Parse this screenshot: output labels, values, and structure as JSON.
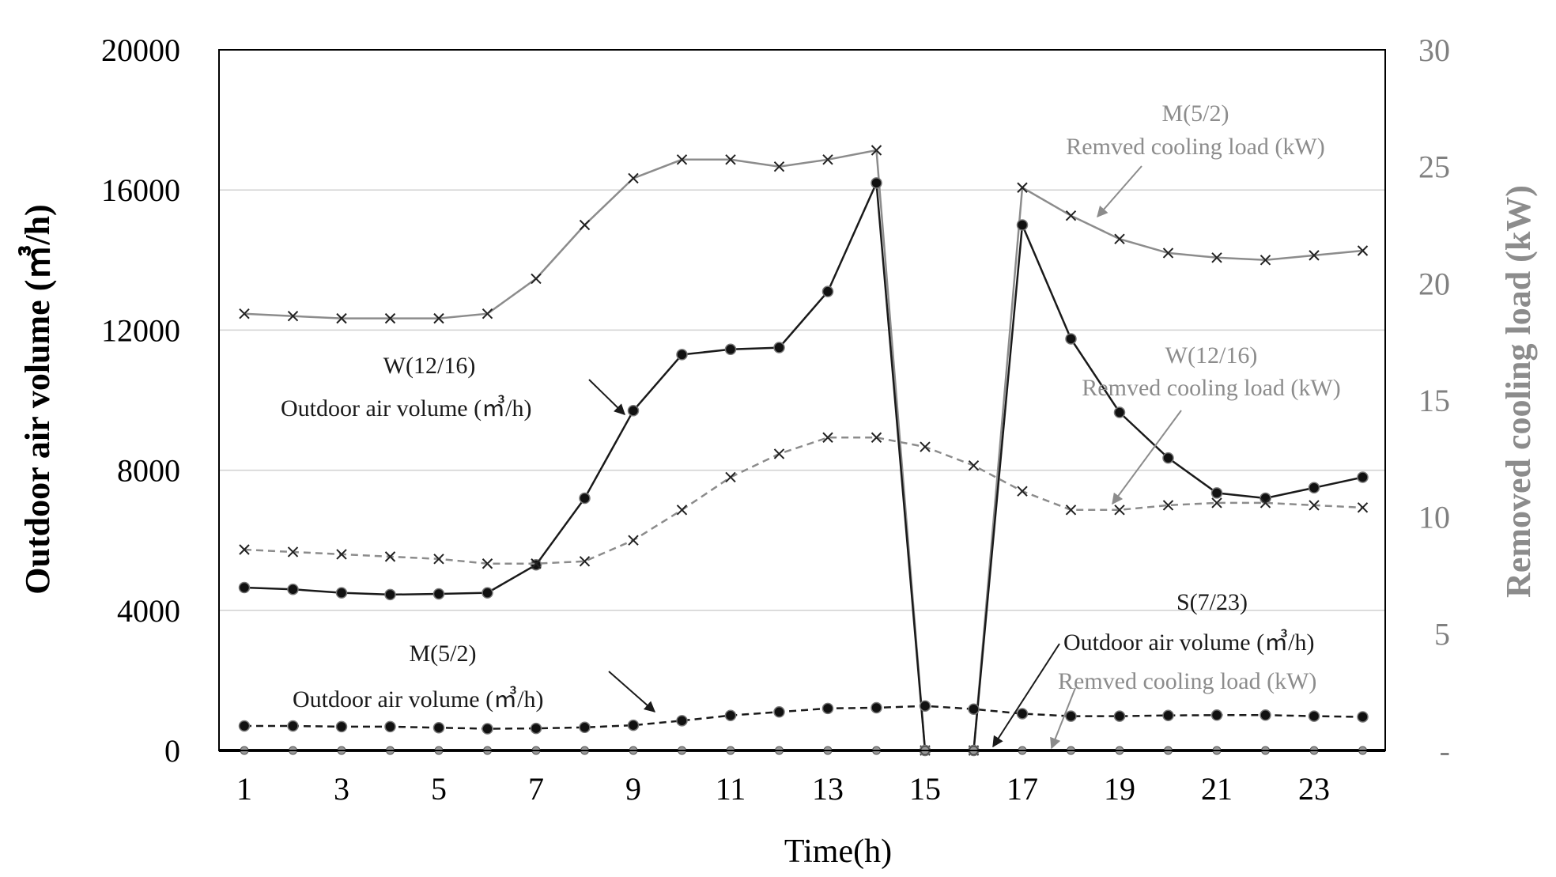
{
  "chart_data": {
    "type": "line",
    "xlabel": "Time(h)",
    "ylabel_left": "Outdoor air volume (㎥/h)",
    "ylabel_right": "Removed cooling load (kW)",
    "x": [
      1,
      2,
      3,
      4,
      5,
      6,
      7,
      8,
      9,
      10,
      11,
      12,
      13,
      14,
      15,
      16,
      17,
      18,
      19,
      20,
      21,
      22,
      23,
      24
    ],
    "x_tick_labels": [
      "1",
      "3",
      "5",
      "7",
      "9",
      "11",
      "13",
      "15",
      "17",
      "19",
      "21",
      "23"
    ],
    "y_left_ticks": [
      "0",
      "4000",
      "8000",
      "12000",
      "16000",
      "20000"
    ],
    "y_right_ticks": [
      "-",
      "5",
      "10",
      "15",
      "20",
      "25",
      "30"
    ],
    "ylim_left": [
      0,
      20000
    ],
    "ylim_right": [
      0,
      30
    ],
    "series": [
      {
        "name": "M(5/2) Removed cooling load (kW)",
        "axis": "right",
        "values": [
          18.7,
          18.6,
          18.5,
          18.5,
          18.5,
          18.7,
          20.2,
          22.5,
          24.5,
          25.3,
          25.3,
          25.0,
          25.3,
          25.7,
          0,
          0,
          24.1,
          22.9,
          21.9,
          21.3,
          21.1,
          21.0,
          21.2,
          21.4
        ]
      },
      {
        "name": "W(12/16) Outdoor air volume (㎥/h)",
        "axis": "left",
        "values": [
          4650,
          4600,
          4500,
          4450,
          4470,
          4500,
          5300,
          7200,
          9700,
          11300,
          11450,
          11500,
          13100,
          16200,
          0,
          0,
          15000,
          11750,
          9650,
          8350,
          7350,
          7200,
          7500,
          7800
        ]
      },
      {
        "name": "W(12/16) Removed cooling load (kW)",
        "axis": "right",
        "values": [
          8.6,
          8.5,
          8.4,
          8.3,
          8.2,
          8.0,
          8.0,
          8.1,
          9.0,
          10.3,
          11.7,
          12.7,
          13.4,
          13.4,
          13.0,
          12.2,
          11.1,
          10.3,
          10.3,
          10.5,
          10.6,
          10.6,
          10.5,
          10.4
        ]
      },
      {
        "name": "M(5/2) Outdoor air volume (㎥/h)",
        "axis": "left",
        "values": [
          700,
          700,
          680,
          680,
          650,
          620,
          630,
          660,
          720,
          850,
          1000,
          1100,
          1200,
          1220,
          1270,
          1180,
          1050,
          980,
          980,
          1000,
          1010,
          1010,
          980,
          960
        ]
      },
      {
        "name": "S(7/23) Outdoor air volume (㎥/h)",
        "axis": "left",
        "values": [
          0,
          0,
          0,
          0,
          0,
          0,
          0,
          0,
          0,
          0,
          0,
          0,
          0,
          0,
          0,
          0,
          0,
          0,
          0,
          0,
          0,
          0,
          0,
          0
        ]
      }
    ],
    "annotations": {
      "m_cooling_title": "M(5/2)",
      "m_cooling_label": "Remved cooling load (kW)",
      "w_air_title": "W(12/16)",
      "w_air_label": "Outdoor air volume (㎥/h)",
      "w_cooling_title": "W(12/16)",
      "w_cooling_label": "Remved cooling load (kW)",
      "s_title": "S(7/23)",
      "s_air_label": "Outdoor air volume (㎥/h)",
      "s_cooling_label": "Remved cooling load (kW)",
      "m_air_title": "M(5/2)",
      "m_air_label": "Outdoor air volume (㎥/h)"
    },
    "colors": {
      "black_series": "#1a1a1a",
      "gray_series": "#8c8c8c",
      "dashed_gray": "#8c8c8c",
      "grid": "#d0d0d0",
      "right_axis_text": "#808080"
    }
  }
}
